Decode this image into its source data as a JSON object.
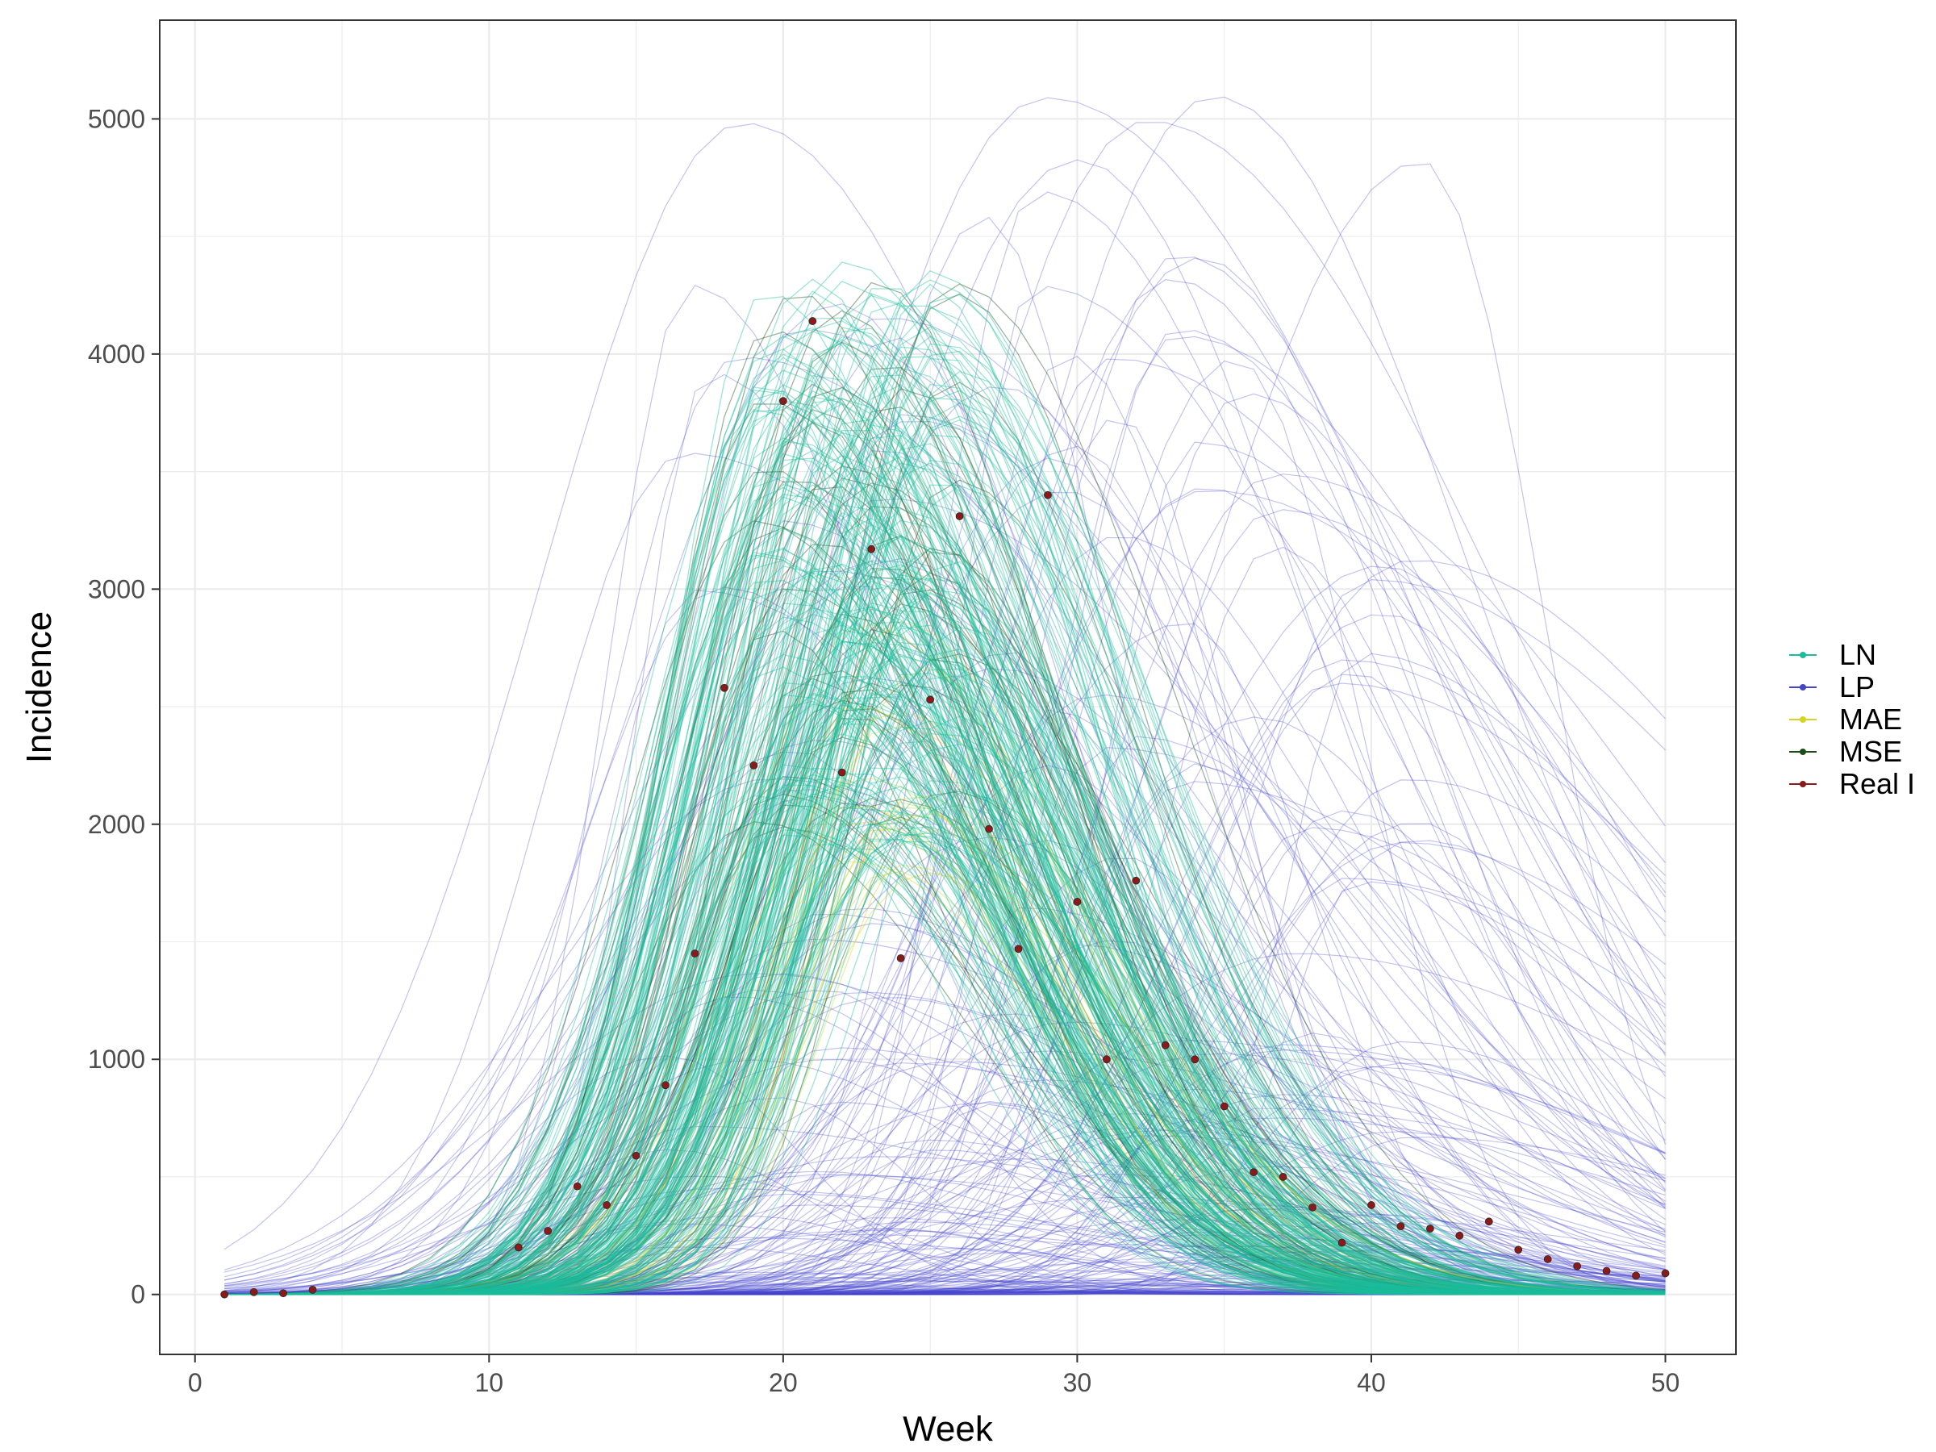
{
  "chart_data": {
    "type": "line",
    "xlabel": "Week",
    "ylabel": "Incidence",
    "xlim": [
      -1.2,
      52.4
    ],
    "ylim": [
      -255,
      5420
    ],
    "x_ticks": [
      0,
      10,
      20,
      30,
      40,
      50
    ],
    "y_ticks": [
      0,
      1000,
      2000,
      3000,
      4000,
      5000
    ],
    "grid": true,
    "legend_position": "right",
    "legend": [
      {
        "name": "LN",
        "color": "#1abc9c"
      },
      {
        "name": "LP",
        "color": "#4545cc"
      },
      {
        "name": "MAE",
        "color": "#d4d422"
      },
      {
        "name": "MSE",
        "color": "#1b4d1b"
      },
      {
        "name": "Real I",
        "color": "#8b1a1a"
      }
    ],
    "real_points": {
      "name": "Real I",
      "x": [
        1,
        2,
        3,
        4,
        11,
        12,
        13,
        14,
        15,
        16,
        17,
        18,
        19,
        20,
        21,
        22,
        23,
        24,
        25,
        26,
        27,
        28,
        29,
        30,
        31,
        32,
        33,
        34,
        35,
        36,
        37,
        38,
        39,
        40,
        41,
        42,
        43,
        44,
        45,
        46,
        47,
        48,
        49,
        50
      ],
      "y": [
        0,
        10,
        5,
        20,
        200,
        270,
        460,
        380,
        590,
        890,
        1450,
        2580,
        2250,
        3800,
        4140,
        2220,
        3170,
        1430,
        2530,
        3310,
        1980,
        1470,
        3400,
        1670,
        1000,
        1760,
        1060,
        1000,
        800,
        520,
        500,
        370,
        220,
        380,
        290,
        280,
        250,
        310,
        190,
        150,
        120,
        100,
        80,
        90
      ]
    },
    "ensembles": [
      {
        "name": "LP",
        "color": "#4545cc",
        "count": 220,
        "peak_min": 10,
        "peak_max": 5200,
        "week_min": 16,
        "week_max": 42
      },
      {
        "name": "MSE",
        "color": "#1b4d1b",
        "count": 60,
        "peak_min": 1900,
        "peak_max": 4400,
        "week_min": 19,
        "week_max": 26
      },
      {
        "name": "MAE",
        "color": "#d4d422",
        "count": 20,
        "peak_min": 1700,
        "peak_max": 2900,
        "week_min": 22,
        "week_max": 25
      },
      {
        "name": "LN",
        "color": "#1abc9c",
        "count": 220,
        "peak_min": 1900,
        "peak_max": 4400,
        "week_min": 19,
        "week_max": 26
      }
    ]
  }
}
